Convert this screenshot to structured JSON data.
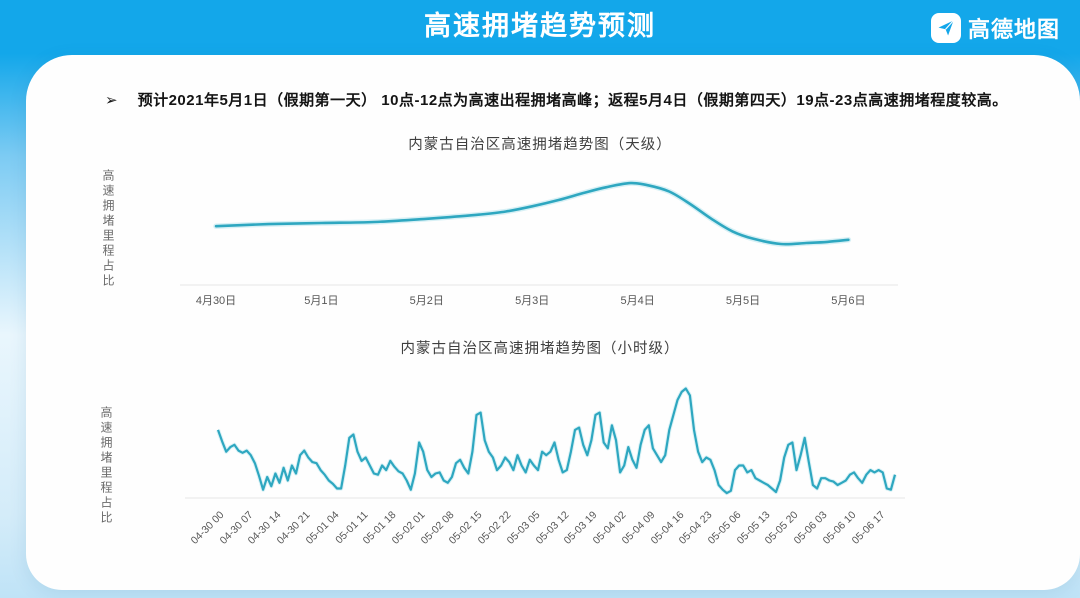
{
  "header": {
    "title": "高速拥堵趋势预测",
    "logo_text": "高德地图",
    "brand_color": "#13A7EA"
  },
  "summary": {
    "marker": "➢",
    "text": "预计2021年5月1日（假期第一天） 10点-12点为高速出程拥堵高峰；返程5月4日（假期第四天）19点-23点高速拥堵程度较高。"
  },
  "line_color": "#2EA7C0",
  "line_halo_color": "#A8E0EA",
  "chart_data": [
    {
      "type": "line",
      "title": "内蒙古自治区高速拥堵趋势图（天级）",
      "ylabel": "高速拥堵里程占比",
      "xlabel": "",
      "x_tick_labels": [
        "4月30日",
        "5月1日",
        "5月2日",
        "5月3日",
        "5月4日",
        "5月5日",
        "5月6日"
      ],
      "x_unit": "days from 4月30日",
      "smooth": true,
      "grid": false,
      "legend": "none",
      "y_axis_ticks": "none shown (relative congestion-mileage ratio, est. 0-100)",
      "ylim": [
        0,
        110
      ],
      "x": [
        0,
        0.5,
        1,
        1.5,
        2,
        2.25,
        2.5,
        2.75,
        3,
        3.25,
        3.5,
        3.7,
        3.93,
        4.1,
        4.3,
        4.5,
        4.7,
        4.9,
        5.1,
        5.36,
        5.6,
        5.8,
        6
      ],
      "values": [
        56,
        58,
        59,
        60,
        63,
        65,
        67,
        70,
        75,
        81,
        88,
        93,
        97,
        95,
        89,
        77,
        63,
        51,
        44,
        39,
        40,
        41,
        43
      ],
      "peak_note": "peak just before 5月4日",
      "line_color": "#2EA7C0"
    },
    {
      "type": "line",
      "title": "内蒙古自治区高速拥堵趋势图（小时级）",
      "ylabel": "高速拥堵里程占比",
      "xlabel": "",
      "x_tick_labels": [
        "04-30 00",
        "04-30 07",
        "04-30 14",
        "04-30 21",
        "05-01 04",
        "05-01 11",
        "05-01 18",
        "05-02 01",
        "05-02 08",
        "05-02 15",
        "05-02 22",
        "05-03 05",
        "05-03 12",
        "05-03 19",
        "05-04 02",
        "05-04 09",
        "05-04 16",
        "05-04 23",
        "05-05 06",
        "05-05 13",
        "05-05 20",
        "05-06 03",
        "05-06 10",
        "05-06 17"
      ],
      "x_unit": "hours from 04-30 00, one point per hour",
      "tick_every_hours": 7,
      "smooth": false,
      "grid": false,
      "legend": "none",
      "y_axis_ticks": "none shown (relative congestion-mileage ratio, est. 0-100)",
      "ylim": [
        0,
        100
      ],
      "values": [
        61,
        51,
        42,
        46,
        48,
        43,
        41,
        43,
        39,
        32,
        21,
        9,
        20,
        12,
        23,
        15,
        28,
        17,
        30,
        23,
        39,
        43,
        37,
        33,
        32,
        26,
        22,
        17,
        14,
        10,
        10,
        30,
        54,
        57,
        42,
        34,
        37,
        30,
        23,
        22,
        30,
        26,
        34,
        29,
        25,
        23,
        17,
        9,
        23,
        50,
        42,
        26,
        20,
        23,
        24,
        17,
        15,
        20,
        32,
        35,
        28,
        23,
        42,
        74,
        76,
        52,
        42,
        37,
        26,
        30,
        37,
        33,
        26,
        39,
        30,
        24,
        35,
        30,
        26,
        42,
        39,
        42,
        50,
        35,
        24,
        26,
        42,
        61,
        63,
        48,
        39,
        52,
        74,
        76,
        50,
        45,
        65,
        52,
        24,
        30,
        46,
        35,
        28,
        48,
        61,
        65,
        45,
        39,
        33,
        39,
        61,
        74,
        87,
        94,
        97,
        91,
        61,
        42,
        33,
        37,
        35,
        26,
        13,
        9,
        6,
        8,
        26,
        30,
        30,
        24,
        26,
        19,
        17,
        15,
        13,
        10,
        7,
        17,
        37,
        48,
        50,
        26,
        39,
        54,
        33,
        13,
        10,
        19,
        19,
        17,
        16,
        13,
        15,
        17,
        22,
        24,
        19,
        15,
        22,
        26,
        24,
        26,
        24,
        10,
        9,
        22
      ],
      "peak_note": "maximum spike around 05-04 18",
      "line_color": "#2EA7C0"
    }
  ]
}
